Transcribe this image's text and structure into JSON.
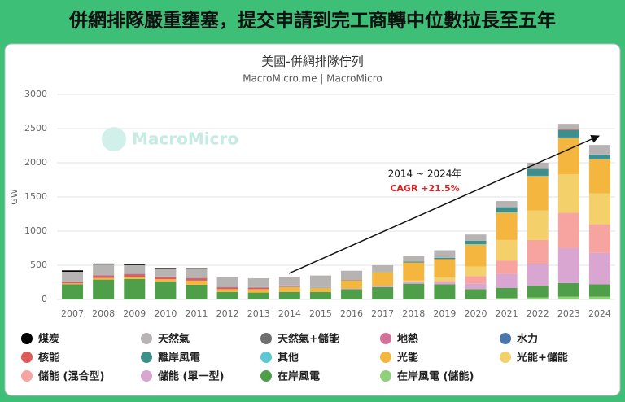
{
  "banner": "併網排隊嚴重壅塞，提交申請到完工商轉中位數拉長至五年",
  "chart_data": {
    "type": "bar",
    "stacked": true,
    "title": "美國-併網排隊佇列",
    "subtitle": "MacroMicro.me | MacroMicro",
    "watermark": "MacroMicro",
    "y_label": "GW",
    "annotation": "2014 ~ 2024年",
    "annotation_note": "CAGR +21.5%",
    "categories": [
      "2007",
      "2008",
      "2009",
      "2010",
      "2011",
      "2012",
      "2013",
      "2014",
      "2015",
      "2016",
      "2017",
      "2018",
      "2019",
      "2020",
      "2021",
      "2022",
      "2023",
      "2024"
    ],
    "ylim": [
      0,
      3000
    ],
    "yticks": [
      0,
      500,
      1000,
      1500,
      2000,
      2500,
      3000
    ],
    "grid": true,
    "series": [
      {
        "name": "煤炭",
        "color": "#000000",
        "values": [
          20,
          15,
          10,
          10,
          5,
          0,
          0,
          0,
          0,
          0,
          0,
          0,
          0,
          0,
          0,
          0,
          0,
          0
        ]
      },
      {
        "name": "天然氣",
        "color": "#b8b3b3",
        "values": [
          140,
          155,
          125,
          115,
          140,
          140,
          130,
          125,
          170,
          135,
          95,
          80,
          110,
          90,
          90,
          90,
          80,
          140
        ]
      },
      {
        "name": "天然氣+儲能",
        "color": "#6f6f6f",
        "values": [
          0,
          0,
          0,
          0,
          0,
          0,
          0,
          0,
          0,
          0,
          0,
          0,
          0,
          0,
          0,
          0,
          0,
          0
        ]
      },
      {
        "name": "地熱",
        "color": "#d4719a",
        "values": [
          5,
          5,
          5,
          5,
          5,
          5,
          5,
          5,
          0,
          0,
          0,
          0,
          0,
          0,
          0,
          0,
          0,
          0
        ]
      },
      {
        "name": "水力",
        "color": "#4a77a8",
        "values": [
          5,
          5,
          5,
          5,
          5,
          5,
          5,
          5,
          5,
          5,
          0,
          0,
          0,
          0,
          0,
          0,
          0,
          0
        ]
      },
      {
        "name": "核能",
        "color": "#e05c5c",
        "values": [
          20,
          30,
          35,
          30,
          30,
          25,
          20,
          10,
          0,
          0,
          0,
          0,
          0,
          0,
          0,
          0,
          10,
          0
        ]
      },
      {
        "name": "離岸風電",
        "color": "#3e8f8b",
        "values": [
          0,
          0,
          0,
          0,
          0,
          0,
          0,
          0,
          0,
          0,
          0,
          15,
          20,
          50,
          70,
          100,
          110,
          60
        ]
      },
      {
        "name": "其他",
        "color": "#5bc8d4",
        "values": [
          0,
          0,
          0,
          0,
          0,
          0,
          0,
          5,
          5,
          0,
          5,
          0,
          0,
          10,
          10,
          10,
          10,
          10
        ]
      },
      {
        "name": "光能",
        "color": "#f4b63f",
        "values": [
          15,
          25,
          30,
          35,
          60,
          40,
          50,
          70,
          60,
          120,
          200,
          260,
          260,
          320,
          400,
          500,
          530,
          500
        ]
      },
      {
        "name": "光能+儲能",
        "color": "#f3d06a",
        "values": [
          0,
          0,
          0,
          0,
          0,
          0,
          0,
          0,
          0,
          0,
          0,
          20,
          60,
          140,
          300,
          430,
          560,
          450
        ]
      },
      {
        "name": "儲能 (混合型)",
        "color": "#f7a3a0",
        "values": [
          0,
          0,
          0,
          0,
          0,
          0,
          0,
          0,
          0,
          0,
          0,
          0,
          20,
          110,
          200,
          350,
          520,
          420
        ]
      },
      {
        "name": "儲能 (單一型)",
        "color": "#d8a6d1",
        "values": [
          0,
          0,
          0,
          0,
          0,
          0,
          0,
          0,
          0,
          10,
          20,
          30,
          30,
          80,
          200,
          320,
          510,
          460
        ]
      },
      {
        "name": "在岸風電",
        "color": "#4f9e4a",
        "values": [
          220,
          290,
          300,
          260,
          215,
          110,
          100,
          110,
          110,
          150,
          180,
          230,
          220,
          140,
          150,
          170,
          200,
          180
        ]
      },
      {
        "name": "在岸風電 (儲能)",
        "color": "#8fd07a",
        "values": [
          0,
          0,
          0,
          0,
          0,
          0,
          0,
          0,
          0,
          0,
          0,
          0,
          0,
          10,
          20,
          30,
          40,
          40
        ]
      }
    ]
  }
}
